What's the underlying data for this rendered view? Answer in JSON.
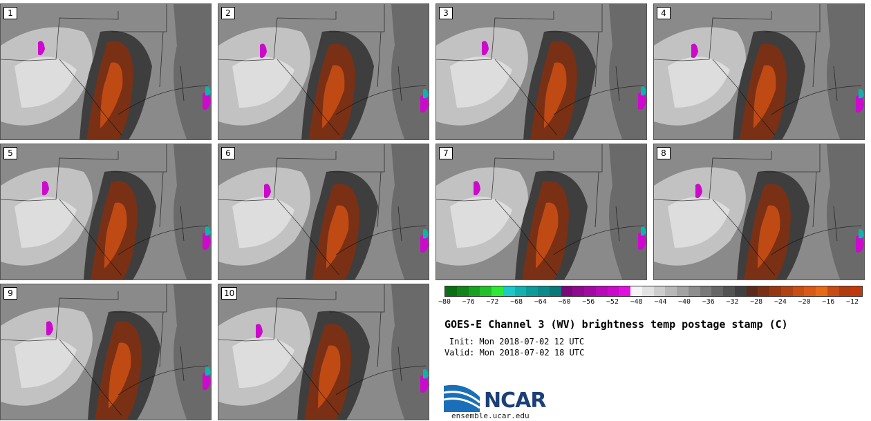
{
  "panels": [
    {
      "label": "1"
    },
    {
      "label": "2"
    },
    {
      "label": "3"
    },
    {
      "label": "4"
    },
    {
      "label": "5"
    },
    {
      "label": "6"
    },
    {
      "label": "7"
    },
    {
      "label": "8"
    },
    {
      "label": "9"
    },
    {
      "label": "10"
    }
  ],
  "colorbar": {
    "ticks": [
      "−80",
      "−76",
      "−72",
      "−68",
      "−64",
      "−60",
      "−56",
      "−52",
      "−48",
      "−44",
      "−40",
      "−36",
      "−32",
      "−28",
      "−24",
      "−20",
      "−16",
      "−12"
    ],
    "colors": [
      "#0a6e12",
      "#11841a",
      "#18a020",
      "#22c02a",
      "#2ee836",
      "#1cc8c8",
      "#12b0b0",
      "#0c9a9a",
      "#0a8a8a",
      "#087878",
      "#7a0a7a",
      "#8e0a8e",
      "#a20aa2",
      "#b80ab8",
      "#cc0acc",
      "#e010e0",
      "#f5f5f5",
      "#e2e2e2",
      "#cdcdcd",
      "#b8b8b8",
      "#a3a3a3",
      "#8e8e8e",
      "#7a7a7a",
      "#666666",
      "#535353",
      "#404040",
      "#5a2a1a",
      "#7a3014",
      "#983812",
      "#b04214",
      "#c84e14",
      "#d85a14",
      "#e66a16",
      "#c84a14",
      "#b03c10",
      "#c0380c"
    ]
  },
  "title": "GOES-E Channel 3 (WV) brightness temp postage stamp (C)",
  "init": "Init: Mon 2018-07-02 12 UTC",
  "valid": "Valid: Mon 2018-07-02 18 UTC",
  "logo_text": "NCAR",
  "site": "ensemble.ucar.edu"
}
